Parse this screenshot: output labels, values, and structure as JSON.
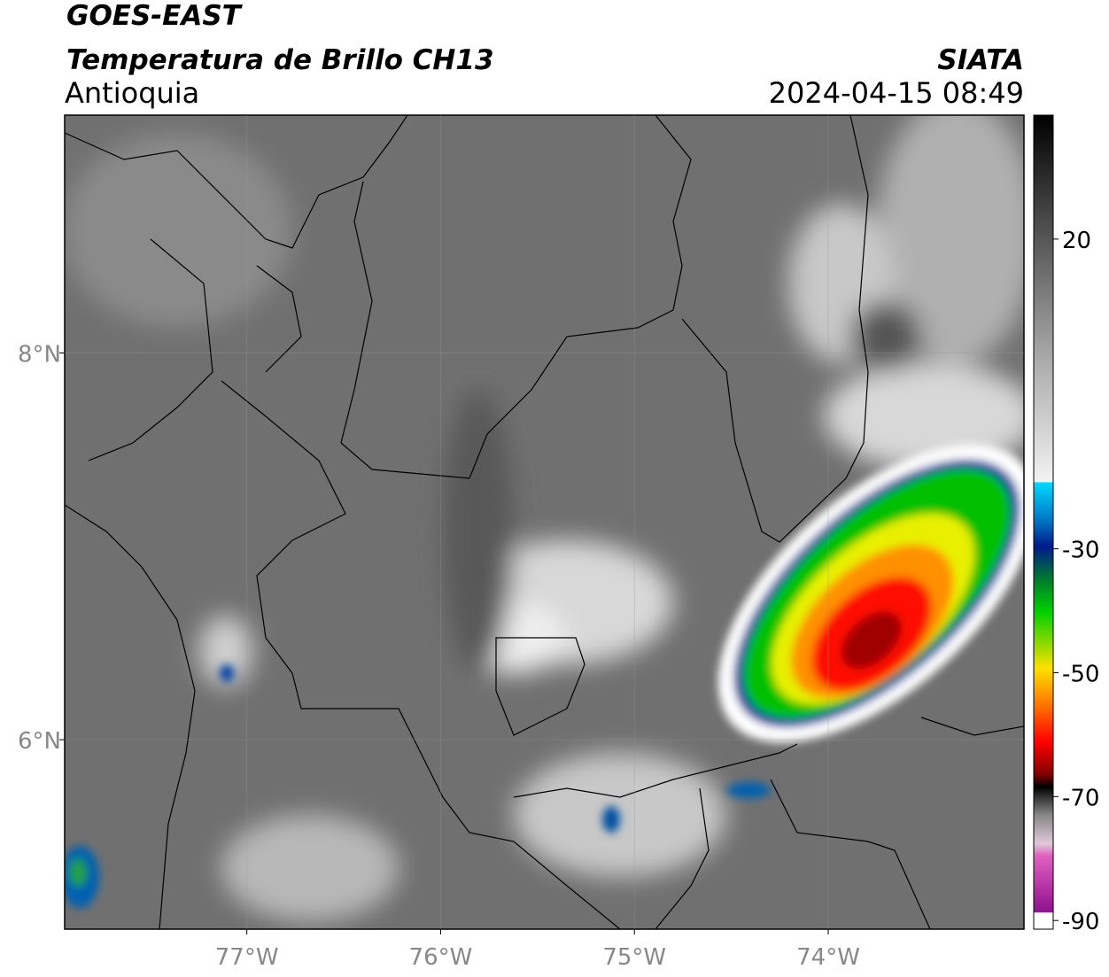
{
  "header": {
    "title": "GOES-EAST",
    "subtitle": "Temperatura de Brillo CH13",
    "region": "Antioquia",
    "source": "SIATA",
    "datetime": "2024-04-15 08:49"
  },
  "map": {
    "xlim": [
      -77.94,
      -72.99
    ],
    "ylim": [
      5.02,
      9.23
    ],
    "xticks": [
      {
        "value": -77,
        "label": "77°W"
      },
      {
        "value": -76,
        "label": "76°W"
      },
      {
        "value": -75,
        "label": "75°W"
      },
      {
        "value": -74,
        "label": "74°W"
      }
    ],
    "yticks": [
      {
        "value": 8,
        "label": "8°N"
      },
      {
        "value": 6,
        "label": "6°N"
      }
    ]
  },
  "colorbar": {
    "lim": [
      -91.4,
      40
    ],
    "ticks": [
      20,
      -30,
      -50,
      -70,
      -90
    ]
  }
}
